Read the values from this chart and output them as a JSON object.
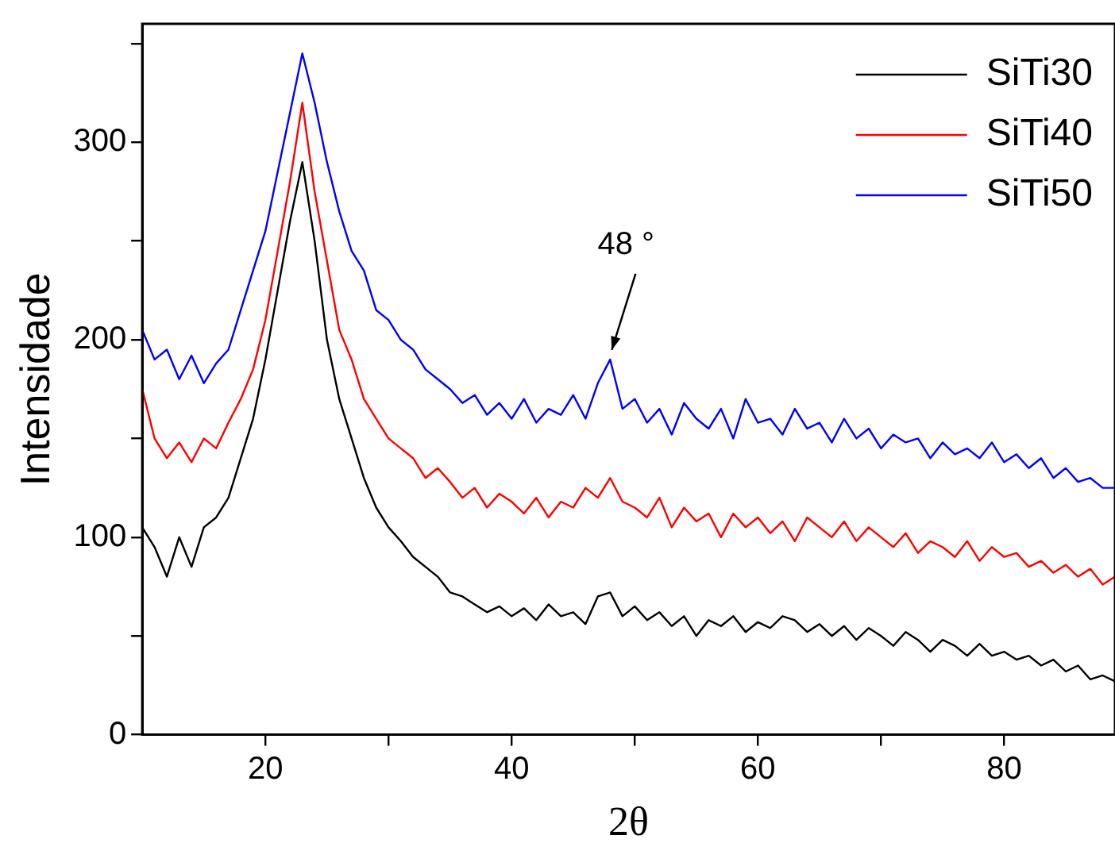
{
  "chart_data": {
    "type": "line",
    "xlabel": "2θ",
    "ylabel": "Intensidade",
    "x": [
      10,
      11,
      12,
      13,
      14,
      15,
      16,
      17,
      18,
      19,
      20,
      21,
      22,
      23,
      24,
      25,
      26,
      27,
      28,
      29,
      30,
      31,
      32,
      33,
      34,
      35,
      36,
      37,
      38,
      39,
      40,
      41,
      42,
      43,
      44,
      45,
      46,
      47,
      48,
      49,
      50,
      51,
      52,
      53,
      54,
      55,
      56,
      57,
      58,
      59,
      60,
      61,
      62,
      63,
      64,
      65,
      66,
      67,
      68,
      69,
      70,
      71,
      72,
      73,
      74,
      75,
      76,
      77,
      78,
      79,
      80,
      81,
      82,
      83,
      84,
      85,
      86,
      87,
      88,
      89
    ],
    "series": [
      {
        "name": "SiTi30",
        "color": "#000000",
        "values": [
          105,
          95,
          80,
          100,
          85,
          105,
          110,
          120,
          140,
          160,
          190,
          225,
          260,
          290,
          250,
          200,
          170,
          150,
          130,
          115,
          105,
          98,
          90,
          85,
          80,
          72,
          70,
          66,
          62,
          65,
          60,
          64,
          58,
          66,
          60,
          62,
          56,
          70,
          72,
          60,
          65,
          58,
          62,
          55,
          60,
          50,
          58,
          55,
          60,
          52,
          57,
          54,
          60,
          58,
          52,
          56,
          50,
          55,
          48,
          54,
          50,
          45,
          52,
          48,
          42,
          48,
          45,
          40,
          46,
          40,
          42,
          38,
          40,
          35,
          38,
          32,
          35,
          28,
          30,
          27
        ]
      },
      {
        "name": "SiTi40",
        "color": "#ff0000",
        "values": [
          175,
          150,
          140,
          148,
          138,
          150,
          145,
          158,
          170,
          185,
          210,
          245,
          280,
          320,
          275,
          240,
          205,
          190,
          170,
          160,
          150,
          145,
          140,
          130,
          135,
          128,
          120,
          125,
          115,
          122,
          118,
          112,
          120,
          110,
          118,
          115,
          125,
          120,
          130,
          118,
          115,
          110,
          120,
          105,
          115,
          108,
          112,
          100,
          112,
          105,
          110,
          102,
          108,
          98,
          110,
          105,
          100,
          108,
          98,
          105,
          100,
          95,
          102,
          92,
          98,
          95,
          90,
          98,
          88,
          95,
          90,
          92,
          85,
          88,
          82,
          86,
          80,
          84,
          76,
          80
        ]
      },
      {
        "name": "SiTi50",
        "color": "#0000ff",
        "values": [
          205,
          190,
          195,
          180,
          192,
          178,
          188,
          195,
          215,
          235,
          255,
          285,
          315,
          345,
          320,
          290,
          265,
          245,
          235,
          215,
          210,
          200,
          195,
          185,
          180,
          175,
          168,
          172,
          162,
          168,
          160,
          170,
          158,
          165,
          162,
          172,
          160,
          178,
          190,
          165,
          170,
          158,
          165,
          152,
          168,
          160,
          155,
          165,
          150,
          170,
          158,
          160,
          152,
          165,
          155,
          158,
          148,
          160,
          150,
          155,
          145,
          152,
          148,
          150,
          140,
          148,
          142,
          145,
          140,
          148,
          138,
          142,
          135,
          140,
          130,
          135,
          128,
          130,
          125,
          125
        ]
      }
    ],
    "xlim": [
      10,
      89
    ],
    "xticks": [
      20,
      {
        "value": 30,
        "label": null
      },
      40,
      {
        "value": 50,
        "label": null
      },
      60,
      {
        "value": 70,
        "label": null
      },
      80
    ],
    "ylim": [
      0,
      360
    ],
    "yticks": [
      0,
      {
        "value": 50,
        "label": null
      },
      100,
      {
        "value": 150,
        "label": null
      },
      200,
      {
        "value": 250,
        "label": null
      },
      300,
      {
        "value": 350,
        "label": null
      }
    ],
    "legend": "top right",
    "grid": false,
    "annotations": [
      {
        "text": "48 °",
        "x": 48,
        "y": 190
      }
    ]
  }
}
